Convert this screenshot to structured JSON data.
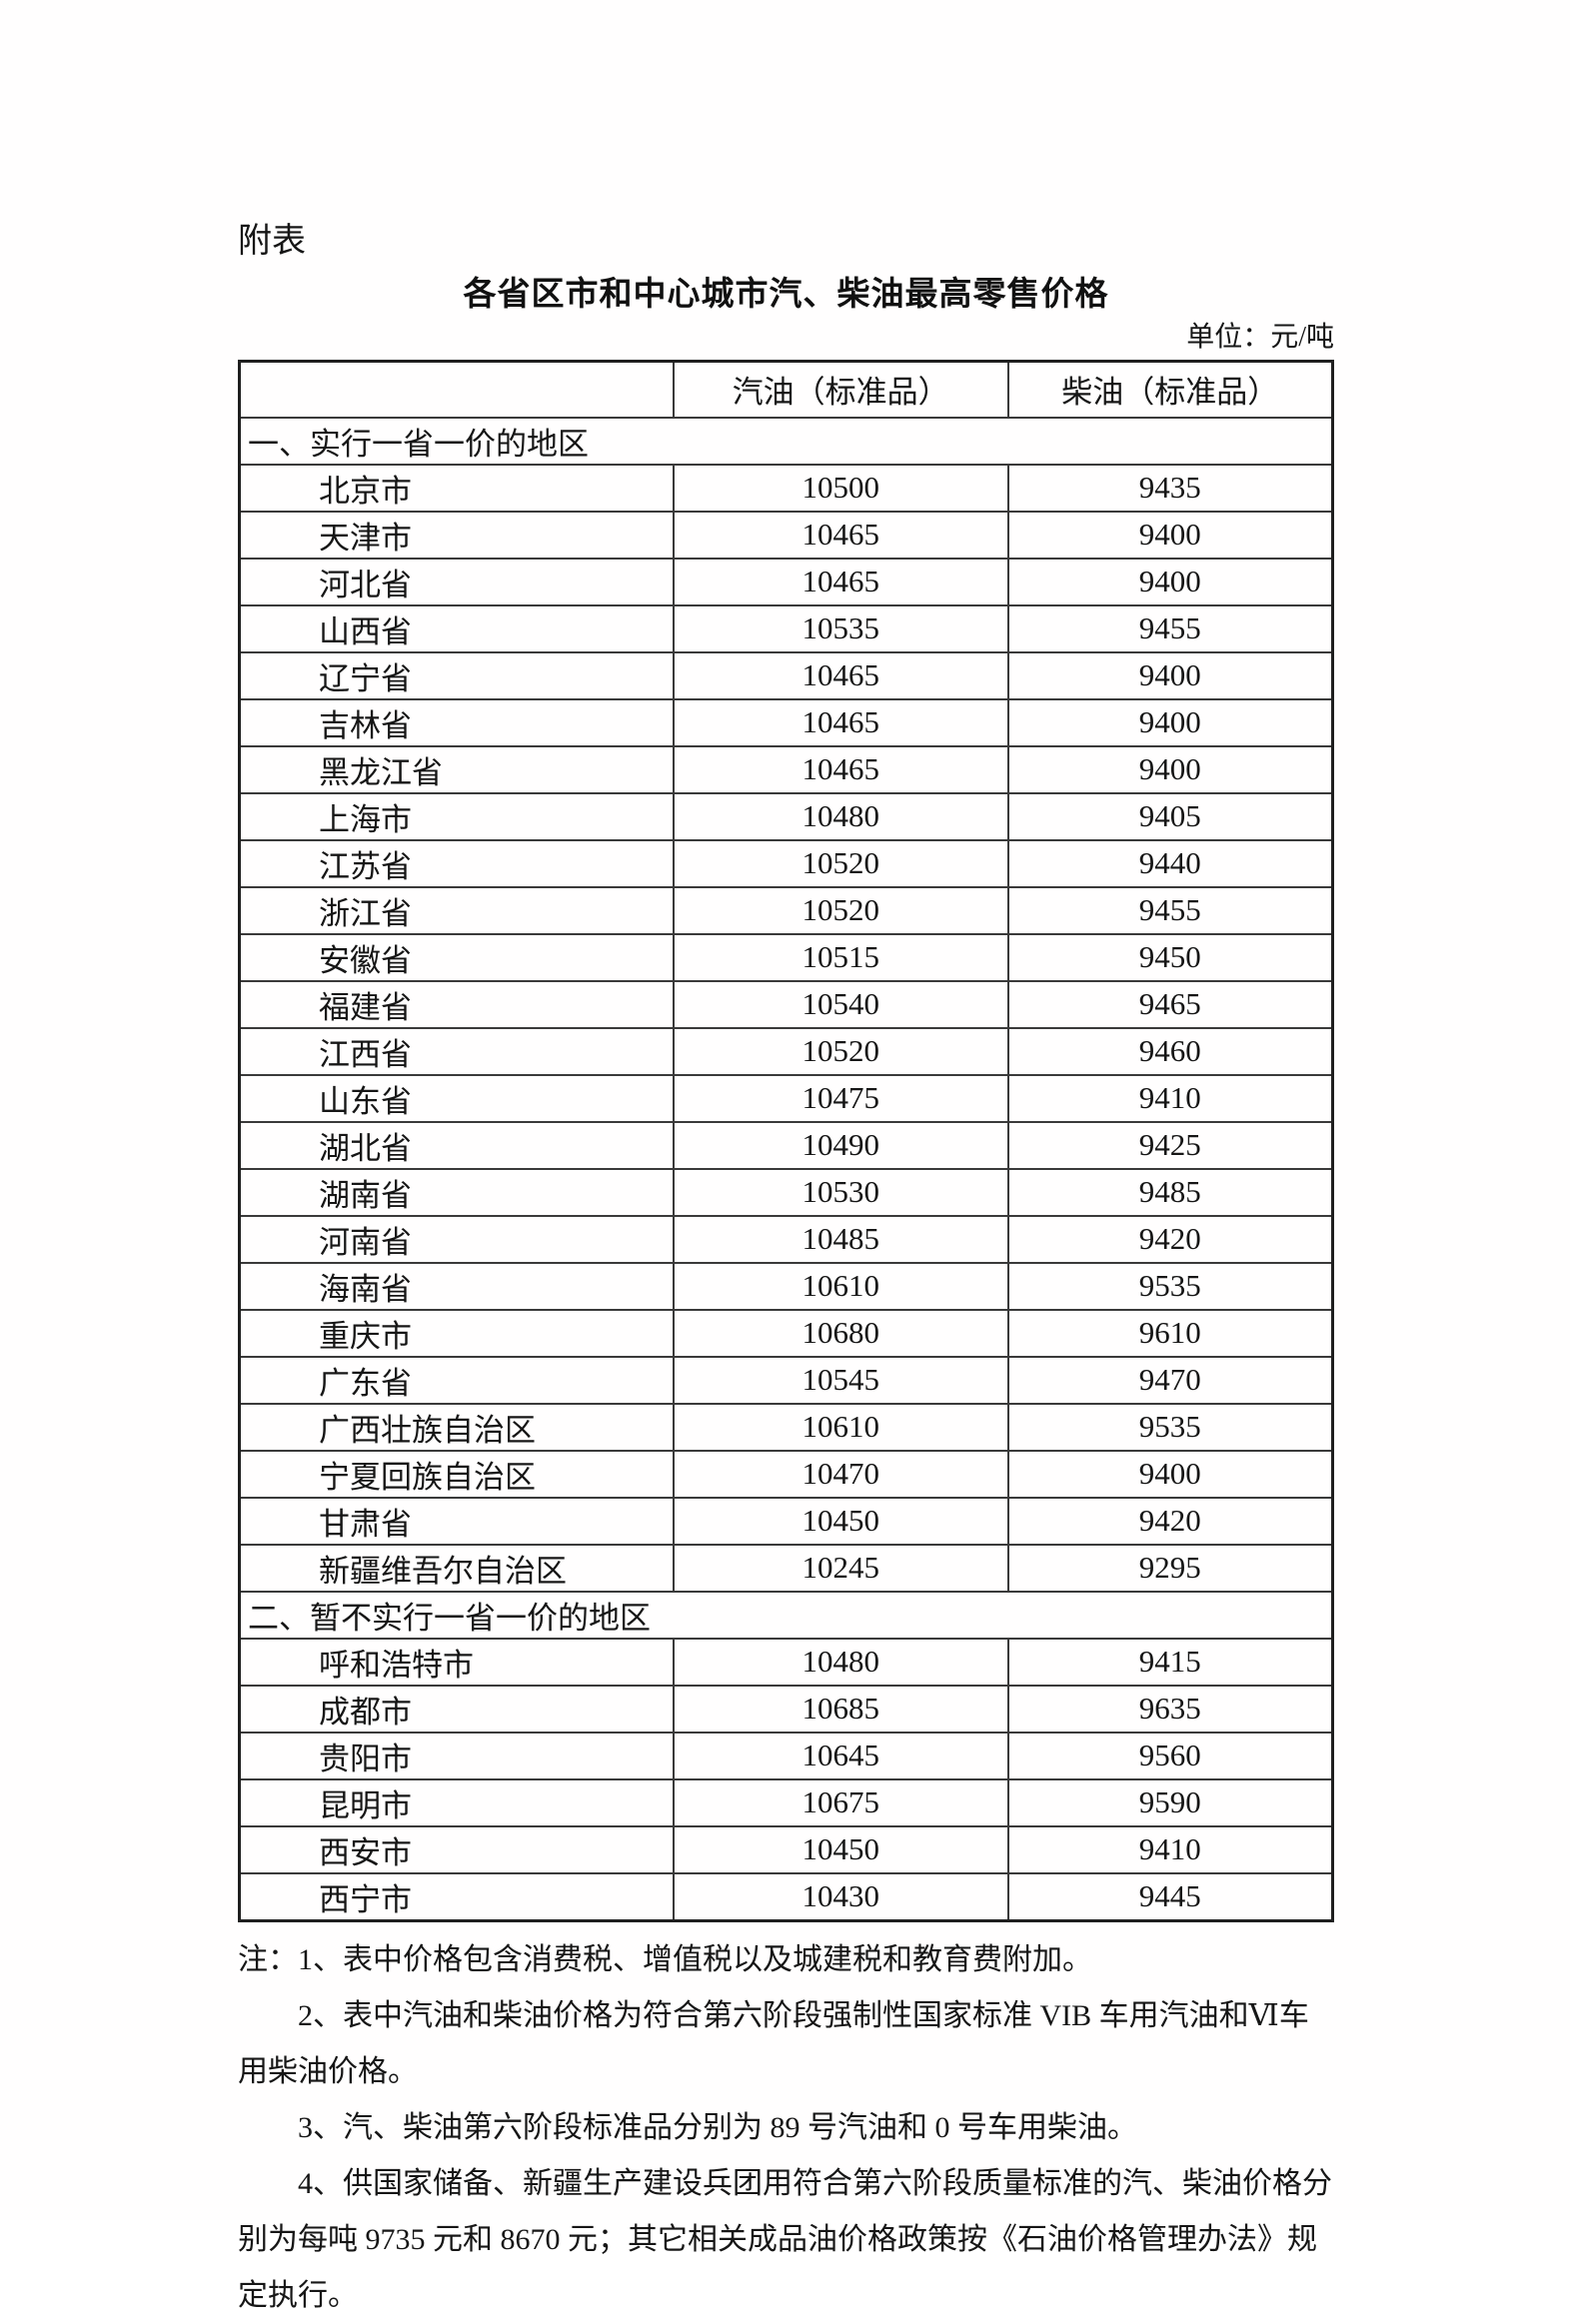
{
  "page": {
    "attachment_label": "附表",
    "title": "各省区市和中心城市汽、柴油最高零售价格",
    "unit_label": "单位：元/吨"
  },
  "table": {
    "header": {
      "region": "",
      "gasoline": "汽油（标准品）",
      "diesel": "柴油（标准品）"
    },
    "sections": [
      {
        "heading": "一、实行一省一价的地区",
        "rows": [
          {
            "region": "北京市",
            "gasoline": "10500",
            "diesel": "9435"
          },
          {
            "region": "天津市",
            "gasoline": "10465",
            "diesel": "9400"
          },
          {
            "region": "河北省",
            "gasoline": "10465",
            "diesel": "9400"
          },
          {
            "region": "山西省",
            "gasoline": "10535",
            "diesel": "9455"
          },
          {
            "region": "辽宁省",
            "gasoline": "10465",
            "diesel": "9400"
          },
          {
            "region": "吉林省",
            "gasoline": "10465",
            "diesel": "9400"
          },
          {
            "region": "黑龙江省",
            "gasoline": "10465",
            "diesel": "9400"
          },
          {
            "region": "上海市",
            "gasoline": "10480",
            "diesel": "9405"
          },
          {
            "region": "江苏省",
            "gasoline": "10520",
            "diesel": "9440"
          },
          {
            "region": "浙江省",
            "gasoline": "10520",
            "diesel": "9455"
          },
          {
            "region": "安徽省",
            "gasoline": "10515",
            "diesel": "9450"
          },
          {
            "region": "福建省",
            "gasoline": "10540",
            "diesel": "9465"
          },
          {
            "region": "江西省",
            "gasoline": "10520",
            "diesel": "9460"
          },
          {
            "region": "山东省",
            "gasoline": "10475",
            "diesel": "9410"
          },
          {
            "region": "湖北省",
            "gasoline": "10490",
            "diesel": "9425"
          },
          {
            "region": "湖南省",
            "gasoline": "10530",
            "diesel": "9485"
          },
          {
            "region": "河南省",
            "gasoline": "10485",
            "diesel": "9420"
          },
          {
            "region": "海南省",
            "gasoline": "10610",
            "diesel": "9535"
          },
          {
            "region": "重庆市",
            "gasoline": "10680",
            "diesel": "9610"
          },
          {
            "region": "广东省",
            "gasoline": "10545",
            "diesel": "9470"
          },
          {
            "region": "广西壮族自治区",
            "gasoline": "10610",
            "diesel": "9535"
          },
          {
            "region": "宁夏回族自治区",
            "gasoline": "10470",
            "diesel": "9400"
          },
          {
            "region": "甘肃省",
            "gasoline": "10450",
            "diesel": "9420"
          },
          {
            "region": "新疆维吾尔自治区",
            "gasoline": "10245",
            "diesel": "9295"
          }
        ]
      },
      {
        "heading": "二、暂不实行一省一价的地区",
        "rows": [
          {
            "region": "呼和浩特市",
            "gasoline": "10480",
            "diesel": "9415"
          },
          {
            "region": "成都市",
            "gasoline": "10685",
            "diesel": "9635"
          },
          {
            "region": "贵阳市",
            "gasoline": "10645",
            "diesel": "9560"
          },
          {
            "region": "昆明市",
            "gasoline": "10675",
            "diesel": "9590"
          },
          {
            "region": "西安市",
            "gasoline": "10450",
            "diesel": "9410"
          },
          {
            "region": "西宁市",
            "gasoline": "10430",
            "diesel": "9445"
          }
        ]
      }
    ]
  },
  "notes": {
    "label": "注：",
    "items": [
      "1、表中价格包含消费税、增值税以及城建税和教育费附加。",
      "2、表中汽油和柴油价格为符合第六阶段强制性国家标准 VIB 车用汽油和Ⅵ车用柴油价格。",
      "3、汽、柴油第六阶段标准品分别为 89 号汽油和 0 号车用柴油。",
      "4、供国家储备、新疆生产建设兵团用符合第六阶段质量标准的汽、柴油价格分别为每吨 9735 元和 8670 元；其它相关成品油价格政策按《石油价格管理办法》规定执行。"
    ]
  }
}
